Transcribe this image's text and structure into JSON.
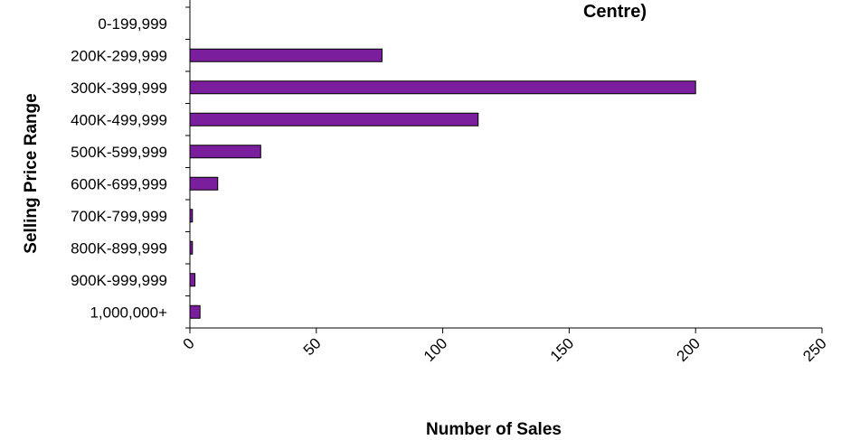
{
  "chart_data": {
    "type": "bar",
    "orientation": "horizontal",
    "title": "Centre)",
    "xlabel": "Number of Sales",
    "ylabel": "Selling Price Range",
    "categories": [
      "0-199,999",
      "200K-299,999",
      "300K-399,999",
      "400K-499,999",
      "500K-599,999",
      "600K-699,999",
      "700K-799,999",
      "800K-899,999",
      "900K-999,999",
      "1,000,000+"
    ],
    "values": [
      0,
      76,
      200,
      114,
      28,
      11,
      1,
      1,
      2,
      4
    ],
    "xlim": [
      0,
      250
    ],
    "xticks": [
      "0",
      "50",
      "100",
      "150",
      "200",
      "250"
    ],
    "grid": false,
    "legend": "none",
    "bar_color": "#7B1E9E",
    "bar_edge_color": "#000000"
  }
}
